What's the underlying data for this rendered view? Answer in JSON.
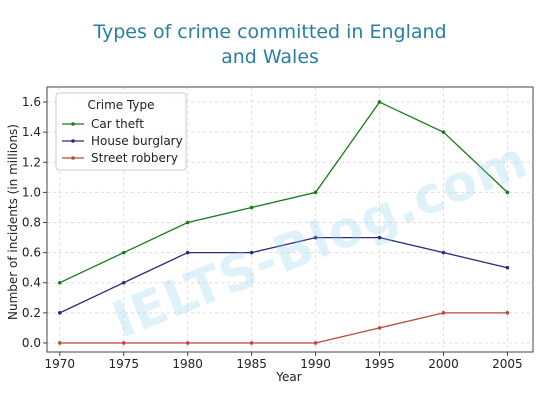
{
  "chart_data": {
    "type": "line",
    "title_line1": "Types of crime committed in England",
    "title_line2": "and Wales",
    "xlabel": "Year",
    "ylabel": "Number of incidents (in millions)",
    "x": [
      1970,
      1975,
      1980,
      1985,
      1990,
      1995,
      2000,
      2005
    ],
    "xlim": [
      1969,
      2007
    ],
    "ylim": [
      -0.06,
      1.7
    ],
    "yticks": [
      "0.0",
      "0.2",
      "0.4",
      "0.6",
      "0.8",
      "1.0",
      "1.2",
      "1.4",
      "1.6"
    ],
    "grid": true,
    "legend": {
      "title": "Crime Type",
      "placement": "top-left"
    },
    "series": [
      {
        "name": "Car theft",
        "color": "#1a7a1a",
        "values": [
          0.4,
          0.6,
          0.8,
          0.9,
          1.0,
          1.6,
          1.4,
          1.0
        ]
      },
      {
        "name": "House burglary",
        "color": "#2b2b7a",
        "values": [
          0.2,
          0.4,
          0.6,
          0.6,
          0.7,
          0.7,
          0.6,
          0.5
        ]
      },
      {
        "name": "Street robbery",
        "color": "#b84a3a",
        "values": [
          0.0,
          0.0,
          0.0,
          0.0,
          0.0,
          0.1,
          0.2,
          0.2
        ]
      }
    ]
  },
  "watermark_text": "IELTS-Blog.com"
}
